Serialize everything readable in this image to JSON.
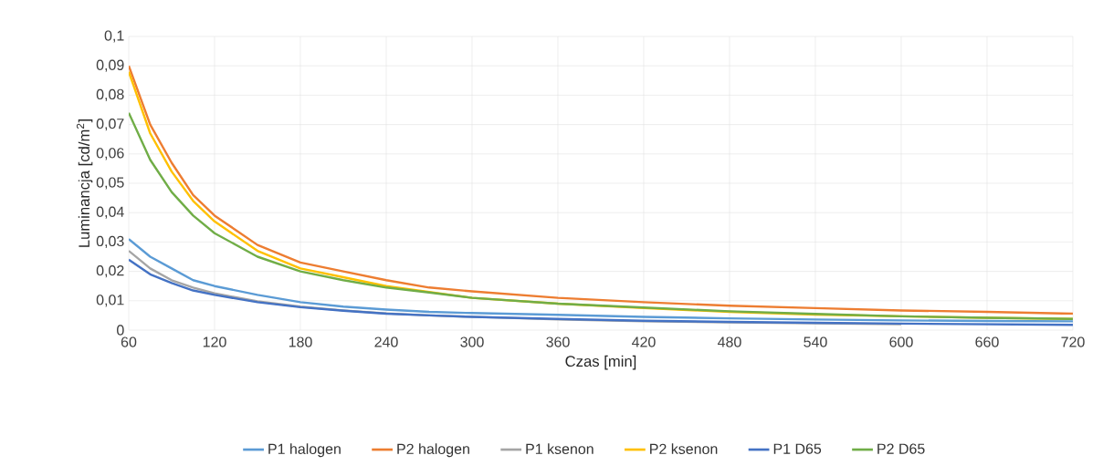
{
  "chart_data": {
    "type": "line",
    "xlabel": "Czas [min]",
    "ylabel": "Luminancja [cd/m$^{2}$]",
    "x": [
      60,
      75,
      90,
      105,
      120,
      150,
      180,
      210,
      240,
      270,
      300,
      360,
      420,
      480,
      540,
      600,
      660,
      720
    ],
    "series": [
      {
        "name": "P1 halogen",
        "color": "#5b9bd5",
        "values": [
          0.031,
          0.025,
          0.021,
          0.017,
          0.015,
          0.012,
          0.0095,
          0.008,
          0.007,
          0.0062,
          0.0058,
          0.0052,
          0.0045,
          0.004,
          0.0036,
          0.0033,
          0.0031,
          0.003
        ]
      },
      {
        "name": "P2 halogen",
        "color": "#ed7d31",
        "values": [
          0.09,
          0.07,
          0.057,
          0.046,
          0.039,
          0.029,
          0.023,
          0.02,
          0.017,
          0.0145,
          0.0132,
          0.011,
          0.0095,
          0.0083,
          0.0075,
          0.0067,
          0.0062,
          0.0056
        ]
      },
      {
        "name": "P1 ksenon",
        "color": "#a5a5a5",
        "values": [
          0.027,
          0.021,
          0.017,
          0.0145,
          0.0125,
          0.0098,
          0.008,
          0.0067,
          0.0057,
          0.005,
          null,
          0.0036,
          0.003,
          0.0026,
          0.0023,
          0.002,
          null,
          null
        ]
      },
      {
        "name": "P2 ksenon",
        "color": "#ffc000",
        "values": [
          0.088,
          0.067,
          0.054,
          0.044,
          0.037,
          0.027,
          0.021,
          0.018,
          0.015,
          0.013,
          0.011,
          0.009,
          0.0075,
          0.0062,
          0.0053,
          0.0047,
          0.0042,
          0.0038
        ]
      },
      {
        "name": "P1 D65",
        "color": "#4472c4",
        "values": [
          0.024,
          0.019,
          0.016,
          0.0135,
          0.012,
          0.0095,
          0.0078,
          0.0066,
          0.0056,
          0.005,
          0.0045,
          0.0038,
          0.0032,
          0.0028,
          0.0025,
          0.0022,
          0.002,
          0.0018
        ]
      },
      {
        "name": "P2 D65",
        "color": "#70ad47",
        "values": [
          0.074,
          0.058,
          0.047,
          0.039,
          0.033,
          0.025,
          0.02,
          0.017,
          0.0145,
          0.0128,
          0.011,
          0.009,
          0.0077,
          0.0064,
          0.0055,
          0.0047,
          0.0042,
          0.0038
        ]
      }
    ],
    "xlim": [
      60,
      720
    ],
    "xticks": [
      60,
      120,
      180,
      240,
      300,
      360,
      420,
      480,
      540,
      600,
      660,
      720
    ],
    "ylim": [
      0,
      0.1
    ],
    "yticks": [
      0,
      {
        "value": 0.01,
        "label": "0,01"
      },
      {
        "value": 0.02,
        "label": "0,02"
      },
      {
        "value": 0.03,
        "label": "0,03"
      },
      {
        "value": 0.04,
        "label": "0,04"
      },
      {
        "value": 0.05,
        "label": "0,05"
      },
      {
        "value": 0.06,
        "label": "0,06"
      },
      {
        "value": 0.07,
        "label": "0,07"
      },
      {
        "value": 0.08,
        "label": "0,08"
      },
      {
        "value": 0.09,
        "label": "0,09"
      },
      {
        "value": 0.1,
        "label": "0,1"
      }
    ],
    "grid": true,
    "legend": "bottom",
    "marker": "none",
    "line_style": "solid"
  }
}
